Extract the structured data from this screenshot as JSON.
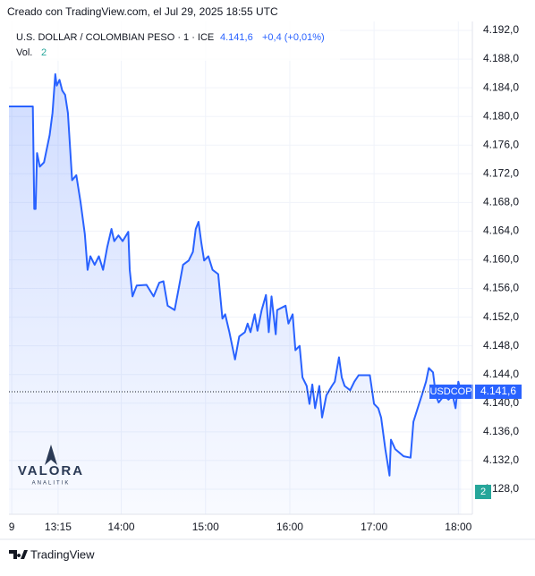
{
  "header": "Creado con TradingView.com, el Jul 29, 2025 18:55 UTC",
  "chart_data": {
    "type": "area",
    "title": "U.S. DOLLAR / COLOMBIAN PESO · 1 · ICE",
    "last_price": {
      "value": 4141.6,
      "label": "4.141,6"
    },
    "change_label": "+0,4 (+0,01%)",
    "volume_title": "Vol.",
    "volume_label": "2",
    "symbol": "USDCOP",
    "color": "#2962ff",
    "x": [
      "12:40",
      "12:57",
      "12:58",
      "12:59",
      "13:00",
      "13:02",
      "13:05",
      "13:09",
      "13:11",
      "13:13",
      "13:14",
      "13:16",
      "13:18",
      "13:20",
      "13:22",
      "13:25",
      "13:28",
      "13:31",
      "13:34",
      "13:36",
      "13:38",
      "13:41",
      "13:44",
      "13:47",
      "13:50",
      "13:53",
      "13:55",
      "13:58",
      "14:01",
      "14:05",
      "14:06",
      "14:08",
      "14:11",
      "14:18",
      "14:23",
      "14:27",
      "14:30",
      "14:33",
      "14:38",
      "14:41",
      "14:44",
      "14:48",
      "14:51",
      "14:53",
      "14:55",
      "14:57",
      "14:59",
      "15:02",
      "15:05",
      "15:09",
      "15:12",
      "15:14",
      "15:17",
      "15:21",
      "15:24",
      "15:28",
      "15:30",
      "15:32",
      "15:35",
      "15:37",
      "15:40",
      "15:43",
      "15:45",
      "15:47",
      "15:50",
      "15:51",
      "15:57",
      "15:59",
      "16:02",
      "16:04",
      "16:07",
      "16:09",
      "16:12",
      "16:14",
      "16:16",
      "16:18",
      "16:21",
      "16:23",
      "16:26",
      "16:30",
      "16:32",
      "16:35",
      "16:37",
      "16:39",
      "16:43",
      "16:46",
      "16:49",
      "16:57",
      "17:00",
      "17:03",
      "17:05",
      "17:08",
      "17:11",
      "17:12",
      "17:15",
      "17:21",
      "17:26",
      "17:28",
      "17:32",
      "17:34",
      "17:37",
      "17:39",
      "17:42",
      "17:44",
      "17:46",
      "17:50",
      "17:53",
      "17:56",
      "17:58",
      "18:00",
      "18:02"
    ],
    "values": [
      4181.4,
      4181.4,
      4167.1,
      4167.1,
      4174.9,
      4173.0,
      4173.6,
      4177.4,
      4180.5,
      4185.9,
      4184.3,
      4185.1,
      4183.6,
      4183.0,
      4180.5,
      4171.1,
      4171.8,
      4168.0,
      4163.6,
      4158.6,
      4160.5,
      4159.3,
      4160.5,
      4158.6,
      4161.8,
      4164.3,
      4162.6,
      4163.4,
      4162.6,
      4163.9,
      4158.6,
      4154.9,
      4156.4,
      4156.5,
      4154.9,
      4156.8,
      4157.0,
      4153.6,
      4153.0,
      4156.1,
      4159.3,
      4159.9,
      4161.1,
      4164.3,
      4165.3,
      4162.4,
      4159.9,
      4160.5,
      4158.6,
      4158.0,
      4151.8,
      4152.4,
      4149.9,
      4146.1,
      4149.3,
      4149.9,
      4151.1,
      4149.9,
      4152.4,
      4150.1,
      4153.0,
      4155.1,
      4149.9,
      4154.9,
      4149.6,
      4153.0,
      4153.6,
      4151.1,
      4152.4,
      4147.4,
      4148.0,
      4143.6,
      4142.4,
      4139.9,
      4142.6,
      4139.3,
      4142.4,
      4138.0,
      4141.1,
      4142.4,
      4143.0,
      4146.4,
      4143.6,
      4142.4,
      4141.8,
      4143.0,
      4143.9,
      4143.9,
      4139.9,
      4139.3,
      4138.0,
      4133.6,
      4129.9,
      4134.9,
      4133.6,
      4132.6,
      4132.4,
      4137.4,
      4139.9,
      4141.1,
      4143.0,
      4144.9,
      4144.3,
      4141.1,
      4140.1,
      4141.1,
      4140.5,
      4141.1,
      4139.3,
      4143.0,
      4141.6
    ],
    "xlim": [
      "12:40",
      "18:10"
    ],
    "xticks": [
      {
        "value": "12:42",
        "label": "9"
      },
      "13:15",
      "14:00",
      "15:00",
      "16:00",
      "17:00",
      "18:00"
    ],
    "ylim": [
      4193.25,
      4124.5
    ],
    "yticks": [
      {
        "value": 4192,
        "label": "4.192,0"
      },
      {
        "value": 4188,
        "label": "4.188,0"
      },
      {
        "value": 4184,
        "label": "4.184,0"
      },
      {
        "value": 4180,
        "label": "4.180,0"
      },
      {
        "value": 4176,
        "label": "4.176,0"
      },
      {
        "value": 4172,
        "label": "4.172,0"
      },
      {
        "value": 4168,
        "label": "4.168,0"
      },
      {
        "value": 4164,
        "label": "4.164,0"
      },
      {
        "value": 4160,
        "label": "4.160,0"
      },
      {
        "value": 4156,
        "label": "4.156,0"
      },
      {
        "value": 4152,
        "label": "4.152,0"
      },
      {
        "value": 4148,
        "label": "4.148,0"
      },
      {
        "value": 4144,
        "label": "4.144,0"
      },
      {
        "value": 4140,
        "label": "4.140,0"
      },
      {
        "value": 4136,
        "label": "4.136,0"
      },
      {
        "value": 4132,
        "label": "4.132,0"
      },
      {
        "value": 4128,
        "label": "4.128,0"
      }
    ],
    "grid": true,
    "watermark": {
      "name": "VALORA",
      "sub": "ANALITIK"
    }
  },
  "footer": "TradingView"
}
